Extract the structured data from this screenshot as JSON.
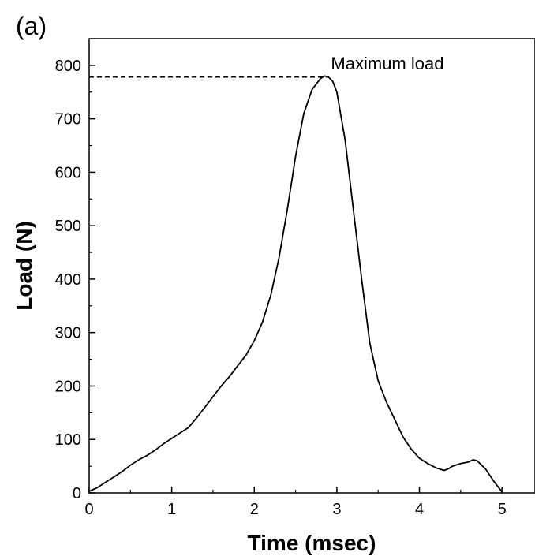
{
  "panel_label": "(a)",
  "chart_data": {
    "type": "line",
    "title": "",
    "xlabel": "Time (msec)",
    "ylabel": "Load (N)",
    "xlim": [
      0,
      5.4
    ],
    "ylim": [
      0,
      850
    ],
    "xticks": [
      0,
      1,
      2,
      3,
      4,
      5
    ],
    "yticks": [
      0,
      100,
      200,
      300,
      400,
      500,
      600,
      700,
      800
    ],
    "grid": false,
    "annotation": {
      "text": "Maximum load",
      "x": 2.9,
      "y": 778
    },
    "series": [
      {
        "x": [
          0.0,
          0.1,
          0.2,
          0.3,
          0.4,
          0.5,
          0.6,
          0.7,
          0.8,
          0.9,
          1.0,
          1.1,
          1.2,
          1.3,
          1.4,
          1.5,
          1.6,
          1.7,
          1.8,
          1.9,
          2.0,
          2.1,
          2.2,
          2.3,
          2.4,
          2.5,
          2.6,
          2.7,
          2.8,
          2.85,
          2.9,
          2.95,
          3.0,
          3.1,
          3.2,
          3.3,
          3.4,
          3.5,
          3.6,
          3.7,
          3.8,
          3.9,
          4.0,
          4.1,
          4.2,
          4.3,
          4.35,
          4.4,
          4.5,
          4.6,
          4.65,
          4.7,
          4.8,
          4.9,
          5.0
        ],
        "y": [
          3,
          10,
          20,
          30,
          40,
          52,
          62,
          70,
          80,
          92,
          102,
          112,
          122,
          140,
          160,
          180,
          200,
          218,
          238,
          258,
          285,
          320,
          370,
          440,
          530,
          630,
          710,
          755,
          775,
          780,
          778,
          770,
          750,
          660,
          530,
          400,
          280,
          210,
          170,
          138,
          105,
          82,
          65,
          55,
          47,
          42,
          45,
          50,
          55,
          58,
          62,
          60,
          45,
          22,
          2
        ]
      }
    ]
  }
}
